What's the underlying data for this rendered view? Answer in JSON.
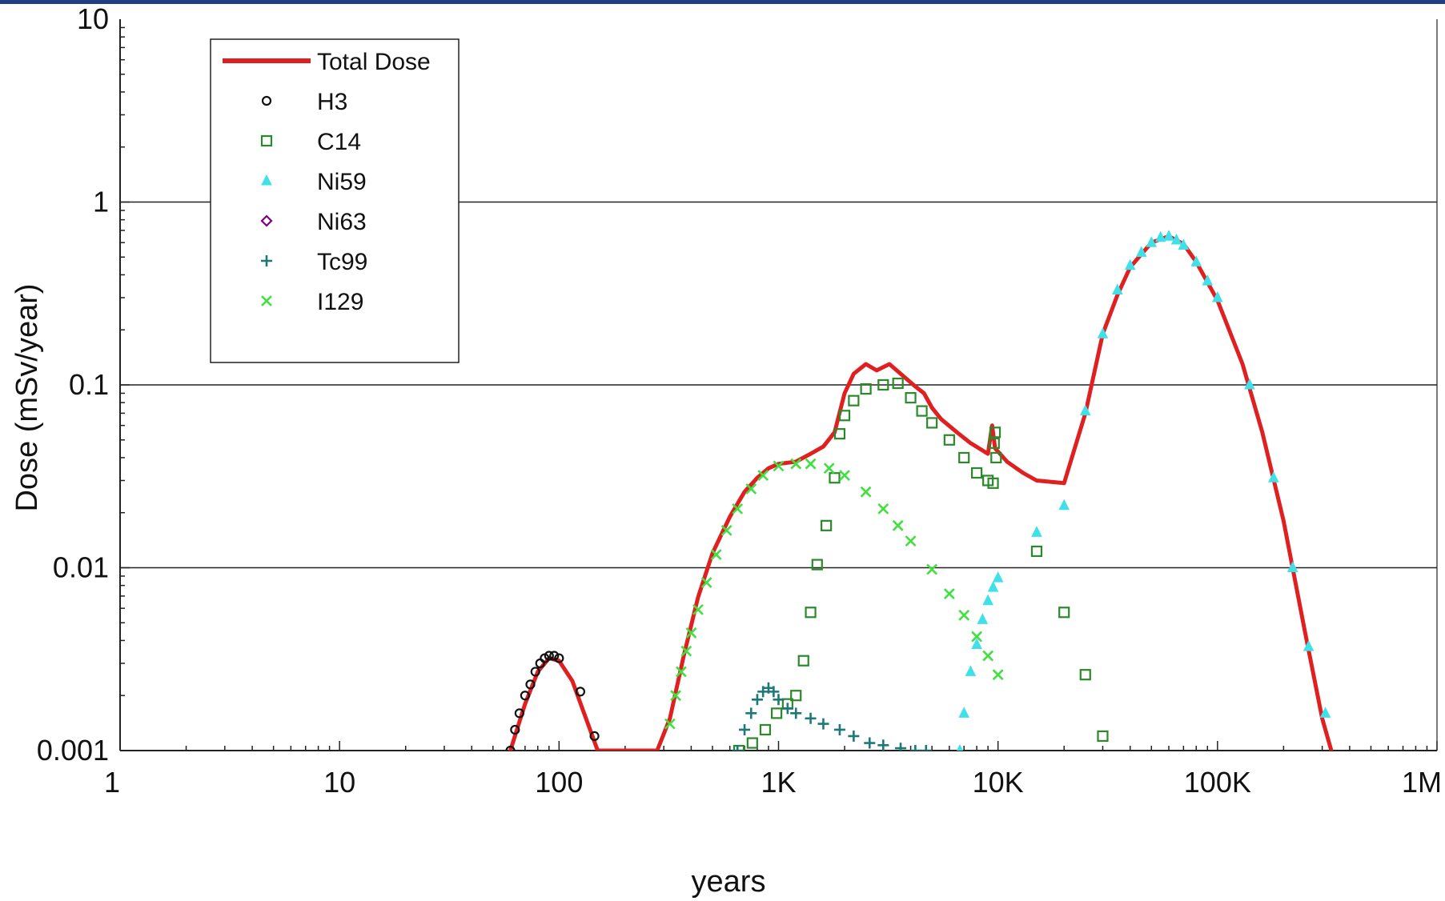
{
  "chart_data": {
    "type": "scatter",
    "title": "",
    "xlabel": "years",
    "ylabel": "Dose  (mSv/year)",
    "x_scale": "log",
    "y_scale": "log",
    "xlim": [
      1,
      1000000
    ],
    "ylim": [
      0.001,
      10
    ],
    "x_ticks": [
      {
        "value": 1,
        "label": "1"
      },
      {
        "value": 10,
        "label": "10"
      },
      {
        "value": 100,
        "label": "100"
      },
      {
        "value": 1000,
        "label": "1K"
      },
      {
        "value": 10000,
        "label": "10K"
      },
      {
        "value": 100000,
        "label": "100K"
      },
      {
        "value": 1000000,
        "label": "1M"
      }
    ],
    "y_ticks": [
      {
        "value": 0.001,
        "label": "0.001"
      },
      {
        "value": 0.01,
        "label": "0.01"
      },
      {
        "value": 0.1,
        "label": "0.1"
      },
      {
        "value": 1,
        "label": "1"
      },
      {
        "value": 10,
        "label": "10"
      }
    ],
    "grid": "horizontal major",
    "legend_position": "top-left",
    "series": [
      {
        "name": "Total Dose",
        "marker": "line",
        "color": "#e02020",
        "points": [
          [
            60,
            0.001
          ],
          [
            70,
            0.0018
          ],
          [
            80,
            0.0027
          ],
          [
            90,
            0.0032
          ],
          [
            100,
            0.0031
          ],
          [
            115,
            0.0024
          ],
          [
            130,
            0.0016
          ],
          [
            150,
            0.001
          ],
          [
            280,
            0.001
          ],
          [
            320,
            0.0015
          ],
          [
            370,
            0.0033
          ],
          [
            430,
            0.0069
          ],
          [
            500,
            0.012
          ],
          [
            600,
            0.019
          ],
          [
            700,
            0.026
          ],
          [
            800,
            0.031
          ],
          [
            900,
            0.035
          ],
          [
            1000,
            0.037
          ],
          [
            1200,
            0.038
          ],
          [
            1400,
            0.042
          ],
          [
            1600,
            0.046
          ],
          [
            1800,
            0.055
          ],
          [
            2000,
            0.09
          ],
          [
            2200,
            0.115
          ],
          [
            2500,
            0.13
          ],
          [
            2800,
            0.12
          ],
          [
            3200,
            0.13
          ],
          [
            3600,
            0.115
          ],
          [
            4200,
            0.098
          ],
          [
            4600,
            0.09
          ],
          [
            5000,
            0.075
          ],
          [
            5500,
            0.065
          ],
          [
            6500,
            0.055
          ],
          [
            7500,
            0.048
          ],
          [
            9000,
            0.042
          ],
          [
            9400,
            0.06
          ],
          [
            9700,
            0.045
          ],
          [
            11000,
            0.038
          ],
          [
            13000,
            0.033
          ],
          [
            15000,
            0.03
          ],
          [
            20000,
            0.029
          ],
          [
            25000,
            0.07
          ],
          [
            30000,
            0.19
          ],
          [
            35000,
            0.31
          ],
          [
            40000,
            0.44
          ],
          [
            50000,
            0.6
          ],
          [
            60000,
            0.65
          ],
          [
            70000,
            0.59
          ],
          [
            80000,
            0.47
          ],
          [
            100000,
            0.29
          ],
          [
            130000,
            0.13
          ],
          [
            160000,
            0.055
          ],
          [
            200000,
            0.018
          ],
          [
            250000,
            0.0045
          ],
          [
            300000,
            0.0015
          ],
          [
            330000,
            0.001
          ]
        ]
      },
      {
        "name": "H3",
        "marker": "circle",
        "color": "#111111",
        "points": [
          [
            60,
            0.001
          ],
          [
            63,
            0.0013
          ],
          [
            66,
            0.0016
          ],
          [
            70,
            0.002
          ],
          [
            74,
            0.0023
          ],
          [
            78,
            0.0027
          ],
          [
            82,
            0.003
          ],
          [
            86,
            0.0032
          ],
          [
            90,
            0.0033
          ],
          [
            95,
            0.0033
          ],
          [
            100,
            0.0032
          ],
          [
            125,
            0.0021
          ],
          [
            145,
            0.0012
          ]
        ]
      },
      {
        "name": "C14",
        "marker": "square",
        "color": "#2a8a2a",
        "points": [
          [
            660,
            0.001
          ],
          [
            760,
            0.0011
          ],
          [
            870,
            0.0013
          ],
          [
            980,
            0.0016
          ],
          [
            1100,
            0.0018
          ],
          [
            1200,
            0.002
          ],
          [
            1300,
            0.0031
          ],
          [
            1400,
            0.0057
          ],
          [
            1500,
            0.0104
          ],
          [
            1650,
            0.017
          ],
          [
            1800,
            0.031
          ],
          [
            1900,
            0.054
          ],
          [
            2000,
            0.068
          ],
          [
            2200,
            0.082
          ],
          [
            2500,
            0.095
          ],
          [
            3000,
            0.1
          ],
          [
            3500,
            0.102
          ],
          [
            4000,
            0.085
          ],
          [
            4500,
            0.072
          ],
          [
            5000,
            0.062
          ],
          [
            6000,
            0.05
          ],
          [
            7000,
            0.04
          ],
          [
            8000,
            0.033
          ],
          [
            9000,
            0.03
          ],
          [
            9500,
            0.029
          ],
          [
            9600,
            0.048
          ],
          [
            9700,
            0.055
          ],
          [
            9800,
            0.04
          ],
          [
            15000,
            0.0123
          ],
          [
            20000,
            0.0057
          ],
          [
            25000,
            0.0026
          ],
          [
            30000,
            0.0012
          ]
        ]
      },
      {
        "name": "Ni59",
        "marker": "triangle",
        "color": "#40e0e8",
        "points": [
          [
            6700,
            0.001
          ],
          [
            7000,
            0.0016
          ],
          [
            7500,
            0.0027
          ],
          [
            8000,
            0.0038
          ],
          [
            8500,
            0.0052
          ],
          [
            9000,
            0.0066
          ],
          [
            9500,
            0.0078
          ],
          [
            10000,
            0.0088
          ],
          [
            15000,
            0.0156
          ],
          [
            20000,
            0.0219
          ],
          [
            25000,
            0.072
          ],
          [
            30000,
            0.19
          ],
          [
            35000,
            0.33
          ],
          [
            40000,
            0.45
          ],
          [
            45000,
            0.53
          ],
          [
            50000,
            0.6
          ],
          [
            55000,
            0.64
          ],
          [
            60000,
            0.65
          ],
          [
            65000,
            0.62
          ],
          [
            70000,
            0.58
          ],
          [
            80000,
            0.47
          ],
          [
            90000,
            0.37
          ],
          [
            100000,
            0.3
          ],
          [
            140000,
            0.1
          ],
          [
            180000,
            0.031
          ],
          [
            220000,
            0.01
          ],
          [
            260000,
            0.0037
          ],
          [
            310000,
            0.0016
          ]
        ]
      },
      {
        "name": "Ni63",
        "marker": "diamond",
        "color": "#800080",
        "points": []
      },
      {
        "name": "Tc99",
        "marker": "plus",
        "color": "#1e7878",
        "points": [
          [
            650,
            0.001
          ],
          [
            700,
            0.0013
          ],
          [
            750,
            0.0016
          ],
          [
            800,
            0.0019
          ],
          [
            850,
            0.0021
          ],
          [
            900,
            0.0022
          ],
          [
            950,
            0.0021
          ],
          [
            1000,
            0.0019
          ],
          [
            1100,
            0.0017
          ],
          [
            1200,
            0.0016
          ],
          [
            1400,
            0.0015
          ],
          [
            1600,
            0.0014
          ],
          [
            1900,
            0.0013
          ],
          [
            2200,
            0.0012
          ],
          [
            2600,
            0.0011
          ],
          [
            3000,
            0.00107
          ],
          [
            3600,
            0.00103
          ],
          [
            4200,
            0.001
          ],
          [
            4700,
            0.001
          ]
        ]
      },
      {
        "name": "I129",
        "marker": "x",
        "color": "#40e040",
        "points": [
          [
            320,
            0.0014
          ],
          [
            340,
            0.002
          ],
          [
            360,
            0.0027
          ],
          [
            380,
            0.0035
          ],
          [
            400,
            0.0044
          ],
          [
            430,
            0.0059
          ],
          [
            470,
            0.0083
          ],
          [
            520,
            0.0118
          ],
          [
            580,
            0.016
          ],
          [
            650,
            0.021
          ],
          [
            750,
            0.027
          ],
          [
            850,
            0.032
          ],
          [
            1000,
            0.036
          ],
          [
            1200,
            0.037
          ],
          [
            1400,
            0.037
          ],
          [
            1700,
            0.035
          ],
          [
            2000,
            0.032
          ],
          [
            2500,
            0.026
          ],
          [
            3000,
            0.021
          ],
          [
            3500,
            0.017
          ],
          [
            4000,
            0.014
          ],
          [
            5000,
            0.0098
          ],
          [
            6000,
            0.0072
          ],
          [
            7000,
            0.0055
          ],
          [
            8000,
            0.0042
          ],
          [
            9000,
            0.0033
          ],
          [
            10000,
            0.0026
          ]
        ]
      }
    ]
  }
}
